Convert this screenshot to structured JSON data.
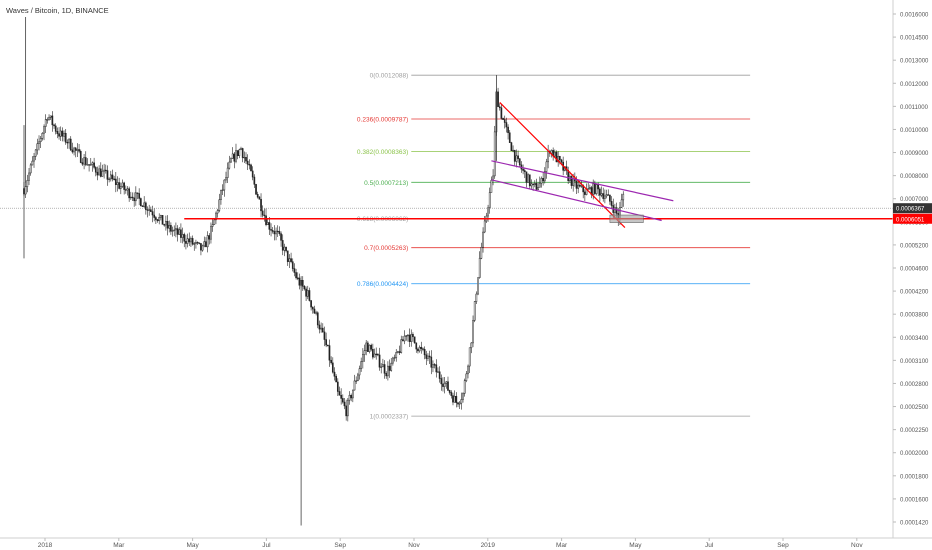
{
  "header": {
    "title": "Waves / Bitcoin, 1D, BINANCE"
  },
  "colors": {
    "candle": "#222222",
    "fib_gray": "#9e9e9e",
    "fib_red": "#e53935",
    "fib_green": "#8bc34a",
    "fib_green2": "#4caf50",
    "fib_blue": "#2196f3",
    "trend_red": "#ff0000",
    "channel_purple": "#9c27b0",
    "support_red": "#ff0000",
    "last_price_bg": "#333333",
    "hline_price_bg": "#ff0000"
  },
  "chart_data": {
    "type": "candlestick",
    "title": "Waves / Bitcoin, 1D, BINANCE",
    "x_tick_labels": [
      "2018",
      "Mar",
      "May",
      "Jul",
      "Sep",
      "Nov",
      "2019",
      "Mar",
      "May",
      "Jul",
      "Sep",
      "Nov"
    ],
    "y_tick_labels": [
      "0.0016000",
      "0.0014500",
      "0.0013000",
      "0.0012000",
      "0.0011000",
      "0.0010000",
      "0.0009000",
      "0.0008000",
      "0.0007000",
      "0.0005800",
      "0.0005200",
      "0.0004600",
      "0.0004200",
      "0.0003800",
      "0.0003400",
      "0.0003100",
      "0.0002800",
      "0.0002500",
      "0.0002250",
      "0.0002000",
      "0.0001800",
      "0.0001600",
      "0.0001420"
    ],
    "y_scale": "log",
    "y_range": [
      0.000135,
      0.00172
    ],
    "price_path": [
      [
        0,
        0.0007
      ],
      [
        8,
        0.00085
      ],
      [
        14,
        0.001
      ],
      [
        20,
        0.00092
      ],
      [
        26,
        0.00088
      ],
      [
        33,
        0.00082
      ],
      [
        40,
        0.00078
      ],
      [
        48,
        0.00075
      ],
      [
        55,
        0.00072
      ],
      [
        62,
        0.00069
      ],
      [
        70,
        0.00066
      ],
      [
        78,
        0.00062
      ],
      [
        86,
        0.00058
      ],
      [
        93,
        0.00056
      ],
      [
        100,
        0.00054
      ],
      [
        107,
        0.00052
      ],
      [
        113,
        0.00058
      ],
      [
        118,
        0.00068
      ],
      [
        124,
        0.0008
      ],
      [
        130,
        0.00085
      ],
      [
        136,
        0.00075
      ],
      [
        141,
        0.00066
      ],
      [
        146,
        0.00059
      ],
      [
        152,
        0.00056
      ],
      [
        158,
        0.0005
      ],
      [
        164,
        0.00045
      ],
      [
        170,
        0.00042
      ],
      [
        176,
        0.00037
      ],
      [
        182,
        0.00032
      ],
      [
        188,
        0.00026
      ],
      [
        193,
        0.00024
      ],
      [
        199,
        0.00028
      ],
      [
        205,
        0.00033
      ],
      [
        211,
        0.00031
      ],
      [
        217,
        0.00029
      ],
      [
        223,
        0.00031
      ],
      [
        229,
        0.00035
      ],
      [
        235,
        0.00033
      ],
      [
        241,
        0.00031
      ],
      [
        247,
        0.00029
      ],
      [
        253,
        0.00027
      ],
      [
        259,
        0.00025
      ],
      [
        263,
        0.00026
      ],
      [
        268,
        0.00034
      ],
      [
        273,
        0.0005
      ],
      [
        278,
        0.00065
      ],
      [
        281,
        0.00075
      ],
      [
        283,
        0.0011
      ],
      [
        286,
        0.001
      ],
      [
        290,
        0.0009
      ],
      [
        295,
        0.0008
      ],
      [
        300,
        0.00075
      ],
      [
        305,
        0.0007
      ],
      [
        310,
        0.00072
      ],
      [
        315,
        0.00085
      ],
      [
        320,
        0.0008
      ],
      [
        325,
        0.00075
      ],
      [
        330,
        0.00071
      ],
      [
        336,
        0.00069
      ],
      [
        342,
        0.0007
      ],
      [
        348,
        0.00068
      ],
      [
        352,
        0.00065
      ],
      [
        356,
        0.00061
      ],
      [
        359,
        0.00068
      ]
    ],
    "fib_levels": [
      {
        "ratio": "0",
        "price": 0.0012088,
        "label": "0(0.0012088)",
        "color_key": "fib_gray"
      },
      {
        "ratio": "0.236",
        "price": 0.0009787,
        "label": "0.236(0.0009787)",
        "color_key": "fib_red"
      },
      {
        "ratio": "0.382",
        "price": 0.0008363,
        "label": "0.382(0.0008363)",
        "color_key": "fib_green"
      },
      {
        "ratio": "0.5",
        "price": 0.0007213,
        "label": "0.5(0.0007213)",
        "color_key": "fib_green2"
      },
      {
        "ratio": "0.618",
        "price": 0.0006062,
        "label": "0.618(0.0006062)",
        "color_key": "fib_gray"
      },
      {
        "ratio": "0.7",
        "price": 0.0005263,
        "label": "0.7(0.0005263)",
        "color_key": "fib_red"
      },
      {
        "ratio": "0.786",
        "price": 0.0004424,
        "label": "0.786(0.0004424)",
        "color_key": "fib_blue"
      },
      {
        "ratio": "1",
        "price": 0.0002337,
        "label": "1(0.0002337)",
        "color_key": "fib_gray"
      }
    ],
    "price_labels": [
      {
        "value": "0.0006367",
        "price": 0.0006367,
        "color_key": "last_price_bg"
      },
      {
        "value": "0.0006051",
        "price": 0.0006051,
        "color_key": "hline_price_bg"
      }
    ],
    "support_line_price": 0.0006051,
    "current_price_line": 0.0006367
  }
}
